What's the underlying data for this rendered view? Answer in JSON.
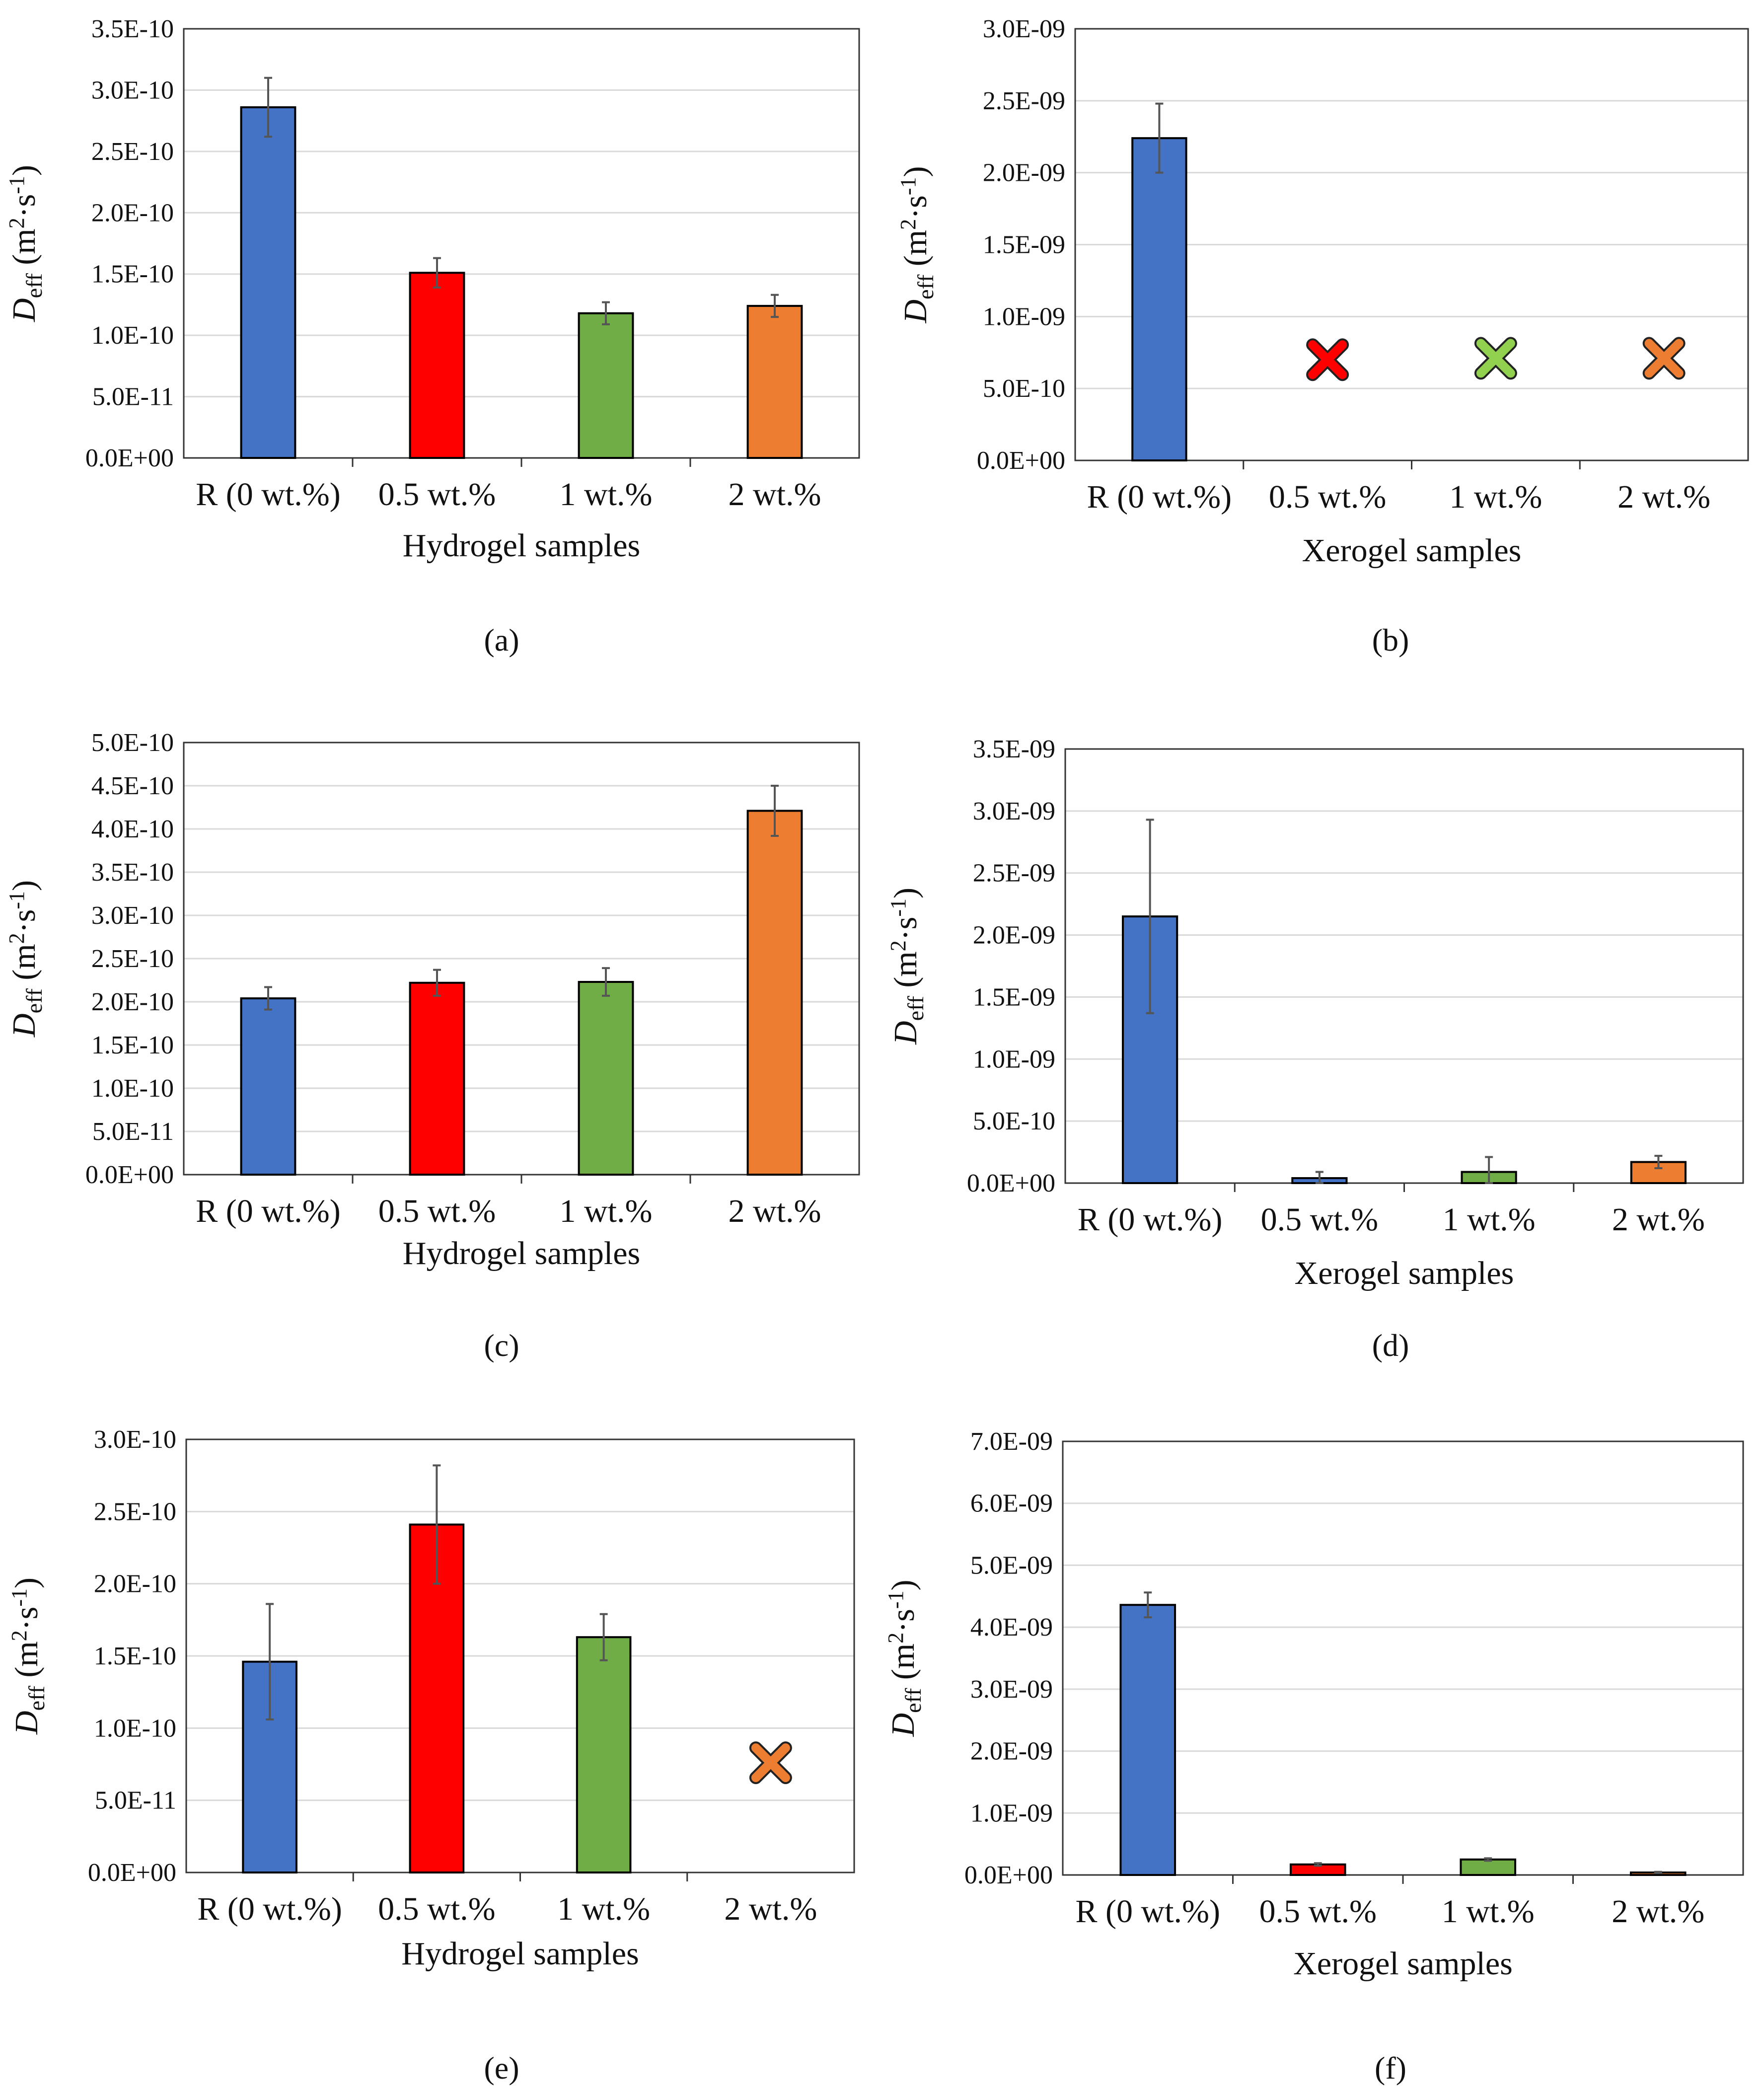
{
  "figure": {
    "y_axis_label": {
      "symbol": "D",
      "subscript": "eff",
      "units_open": "(m",
      "sup1": "2",
      "units_mid": "·s",
      "sup2": "-1",
      "units_close": ")"
    }
  },
  "chart_data": [
    {
      "panel": "a",
      "caption": "(a)",
      "type": "bar",
      "xlabel": "Hydrogel samples",
      "categories": [
        "R (0 wt.%)",
        "0.5 wt.%",
        "1 wt.%",
        "2 wt.%"
      ],
      "values": [
        2.86e-10,
        1.51e-10,
        1.18e-10,
        1.24e-10
      ],
      "errors": [
        2.4e-11,
        1.2e-11,
        9e-12,
        9e-12
      ],
      "missing": [
        false,
        false,
        false,
        false
      ],
      "ylim": [
        0,
        3.5e-10
      ],
      "ticks": [
        "0.0E+00",
        "5.0E-11",
        "1.0E-10",
        "1.5E-10",
        "2.0E-10",
        "2.5E-10",
        "3.0E-10",
        "3.5E-10"
      ],
      "colors": [
        "#4472c4",
        "#ff0000",
        "#70ad47",
        "#ed7d31"
      ]
    },
    {
      "panel": "b",
      "caption": "(b)",
      "type": "bar",
      "xlabel": "Xerogel samples",
      "categories": [
        "R (0 wt.%)",
        "0.5 wt.%",
        "1 wt.%",
        "2 wt.%"
      ],
      "values": [
        2.24e-09,
        0,
        0,
        0
      ],
      "errors": [
        2.4e-10,
        0,
        0,
        0
      ],
      "missing": [
        false,
        true,
        true,
        true
      ],
      "marker_values": [
        null,
        7e-10,
        7.1e-10,
        7.1e-10
      ],
      "ylim": [
        0,
        3e-09
      ],
      "ticks": [
        "0.0E+00",
        "5.0E-10",
        "1.0E-09",
        "1.5E-09",
        "2.0E-09",
        "2.5E-09",
        "3.0E-09"
      ],
      "colors": [
        "#4472c4",
        "#ff0000",
        "#92d050",
        "#ed7d31"
      ]
    },
    {
      "panel": "c",
      "caption": "(c)",
      "type": "bar",
      "xlabel": "Hydrogel samples",
      "categories": [
        "R (0 wt.%)",
        "0.5 wt.%",
        "1 wt.%",
        "2 wt.%"
      ],
      "values": [
        2.04e-10,
        2.22e-10,
        2.23e-10,
        4.21e-10
      ],
      "errors": [
        1.3e-11,
        1.5e-11,
        1.6e-11,
        2.9e-11
      ],
      "missing": [
        false,
        false,
        false,
        false
      ],
      "ylim": [
        0,
        5e-10
      ],
      "ticks": [
        "0.0E+00",
        "5.0E-11",
        "1.0E-10",
        "1.5E-10",
        "2.0E-10",
        "2.5E-10",
        "3.0E-10",
        "3.5E-10",
        "4.0E-10",
        "4.5E-10",
        "5.0E-10"
      ],
      "colors": [
        "#4472c4",
        "#ff0000",
        "#70ad47",
        "#ed7d31"
      ]
    },
    {
      "panel": "d",
      "caption": "(d)",
      "type": "bar",
      "xlabel": "Xerogel samples",
      "categories": [
        "R (0 wt.%)",
        "0.5 wt.%",
        "1 wt.%",
        "2 wt.%"
      ],
      "values": [
        2.15e-09,
        4e-11,
        9e-11,
        1.7e-10
      ],
      "errors": [
        7.8e-10,
        5e-11,
        1.2e-10,
        5e-11
      ],
      "missing": [
        false,
        false,
        false,
        false
      ],
      "ylim": [
        0,
        3.5e-09
      ],
      "ticks": [
        "0.0E+00",
        "5.0E-10",
        "1.0E-09",
        "1.5E-09",
        "2.0E-09",
        "2.5E-09",
        "3.0E-09",
        "3.5E-09"
      ],
      "colors": [
        "#4472c4",
        "#4472c4",
        "#70ad47",
        "#ed7d31"
      ]
    },
    {
      "panel": "e",
      "caption": "(e)",
      "type": "bar",
      "xlabel": "Hydrogel samples",
      "categories": [
        "R (0 wt.%)",
        "0.5 wt.%",
        "1 wt.%",
        "2 wt.%"
      ],
      "values": [
        1.46e-10,
        2.41e-10,
        1.63e-10,
        0
      ],
      "errors": [
        4e-11,
        4.1e-11,
        1.6e-11,
        0
      ],
      "missing": [
        false,
        false,
        false,
        true
      ],
      "marker_values": [
        null,
        null,
        null,
        7.6e-11
      ],
      "ylim": [
        0,
        3e-10
      ],
      "ticks": [
        "0.0E+00",
        "5.0E-11",
        "1.0E-10",
        "1.5E-10",
        "2.0E-10",
        "2.5E-10",
        "3.0E-10"
      ],
      "colors": [
        "#4472c4",
        "#ff0000",
        "#70ad47",
        "#ed7d31"
      ]
    },
    {
      "panel": "f",
      "caption": "(f)",
      "type": "bar",
      "xlabel": "Xerogel samples",
      "categories": [
        "R (0 wt.%)",
        "0.5 wt.%",
        "1 wt.%",
        "2 wt.%"
      ],
      "values": [
        4.36e-09,
        1.7e-10,
        2.5e-10,
        4e-11
      ],
      "errors": [
        2e-10,
        2e-11,
        2e-11,
        1e-11
      ],
      "missing": [
        false,
        false,
        false,
        false
      ],
      "ylim": [
        0,
        7e-09
      ],
      "ticks": [
        "0.0E+00",
        "1.0E-09",
        "2.0E-09",
        "3.0E-09",
        "4.0E-09",
        "5.0E-09",
        "6.0E-09",
        "7.0E-09"
      ],
      "colors": [
        "#4472c4",
        "#ff0000",
        "#70ad47",
        "#ed7d31"
      ]
    }
  ]
}
